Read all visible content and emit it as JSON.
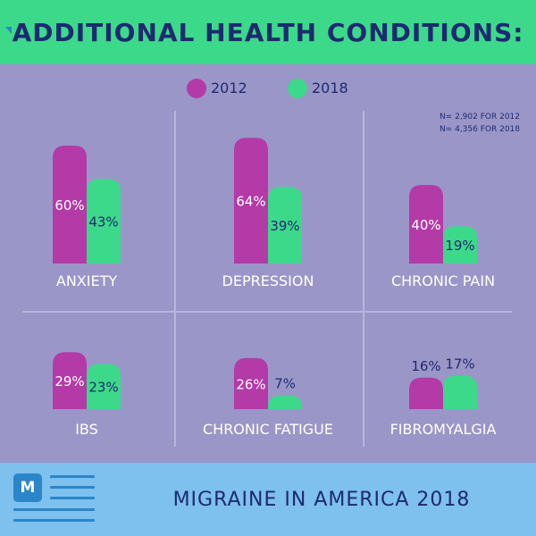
{
  "header": {
    "title": "ADDITIONAL HEALTH CONDITIONS:"
  },
  "note": {
    "line1": "N= 2,902 FOR 2012",
    "line2": "N= 4,356 FOR 2018"
  },
  "footer": {
    "title": "MIGRAINE IN AMERICA 2018",
    "logo_icon": "migraine-logo-speech-bubble-icon",
    "logo_letter": "M"
  },
  "colors": {
    "background": "#9b96c8",
    "header": "#3cd98a",
    "footer": "#7ec0ee",
    "text": "#1d2a70",
    "series_2012": "#b43aa8",
    "series_2018": "#3cd98a",
    "logo": "#2a86c8"
  },
  "chart_data": {
    "type": "bar",
    "title": "ADDITIONAL HEALTH CONDITIONS:",
    "legend_position": "top",
    "grid": false,
    "ylim": [
      0,
      100
    ],
    "series": [
      {
        "name": "2012",
        "color": "#b43aa8"
      },
      {
        "name": "2018",
        "color": "#3cd98a"
      }
    ],
    "panels": [
      {
        "category": "ANXIETY",
        "values": [
          60,
          43
        ],
        "labels": [
          "60%",
          "43%"
        ]
      },
      {
        "category": "DEPRESSION",
        "values": [
          64,
          39
        ],
        "labels": [
          "64%",
          "39%"
        ]
      },
      {
        "category": "CHRONIC PAIN",
        "values": [
          40,
          19
        ],
        "labels": [
          "40%",
          "19%"
        ]
      },
      {
        "category": "IBS",
        "values": [
          29,
          23
        ],
        "labels": [
          "29%",
          "23%"
        ]
      },
      {
        "category": "CHRONIC FATIGUE",
        "values": [
          26,
          7
        ],
        "labels": [
          "26%",
          "7%"
        ]
      },
      {
        "category": "FIBROMYALGIA",
        "values": [
          16,
          17
        ],
        "labels": [
          "16%",
          "17%"
        ]
      }
    ]
  }
}
